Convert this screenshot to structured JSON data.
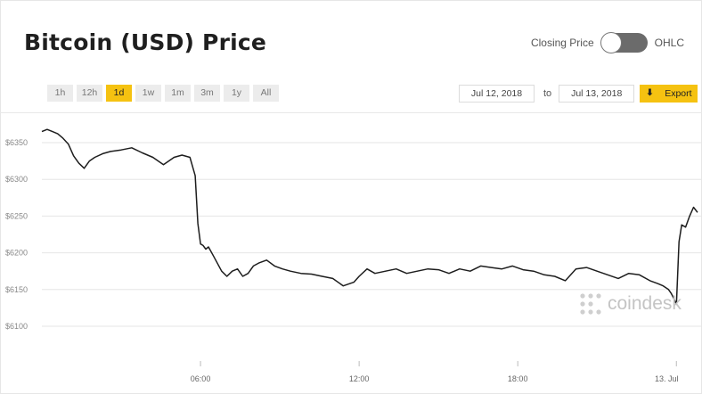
{
  "header": {
    "title": "Bitcoin (USD) Price"
  },
  "toggle": {
    "left_label": "Closing Price",
    "right_label": "OHLC"
  },
  "ranges": [
    "1h",
    "12h",
    "1d",
    "1w",
    "1m",
    "3m",
    "1y",
    "All"
  ],
  "active_range": "1d",
  "dates": {
    "from": "Jul 12, 2018",
    "to_label": "to",
    "to": "Jul 13, 2018"
  },
  "export_label": "Export",
  "watermark": "coindesk",
  "chart_data": {
    "type": "line",
    "y_ticks": [
      "$6350",
      "$6300",
      "$6250",
      "$6200",
      "$6150",
      "$6100"
    ],
    "x_ticks": [
      "06:00",
      "12:00",
      "18:00",
      "13. Jul"
    ],
    "ylim": [
      6100,
      6350
    ],
    "grid": true,
    "series": [
      {
        "x": [
          0.0,
          0.2,
          0.4,
          0.6,
          0.8,
          1.0,
          1.2,
          1.4,
          1.6,
          1.8,
          2.0,
          2.3,
          2.6,
          3.0,
          3.4,
          3.8,
          4.2,
          4.6,
          5.0,
          5.3,
          5.6,
          5.8,
          5.9,
          6.0,
          6.1,
          6.2,
          6.3,
          6.5,
          6.8,
          7.0,
          7.2,
          7.4,
          7.6,
          7.8,
          8.0,
          8.2,
          8.5,
          8.8,
          9.1,
          9.4,
          9.8,
          10.2,
          10.6,
          11.0,
          11.4,
          11.8,
          12.0,
          12.3,
          12.6,
          13.0,
          13.4,
          13.8,
          14.2,
          14.6,
          15.0,
          15.4,
          15.8,
          16.2,
          16.6,
          17.0,
          17.4,
          17.8,
          18.2,
          18.6,
          19.0,
          19.4,
          19.8,
          20.2,
          20.6,
          21.0,
          21.4,
          21.8,
          22.2,
          22.6,
          23.0,
          23.3,
          23.5,
          23.7,
          23.8,
          23.9,
          24.0,
          24.1,
          24.2,
          24.35,
          24.5,
          24.65,
          24.8
        ],
        "values": [
          6365,
          6368,
          6365,
          6362,
          6356,
          6348,
          6332,
          6322,
          6315,
          6325,
          6330,
          6335,
          6338,
          6340,
          6343,
          6336,
          6330,
          6320,
          6330,
          6333,
          6330,
          6305,
          6240,
          6212,
          6210,
          6205,
          6208,
          6195,
          6175,
          6168,
          6175,
          6178,
          6168,
          6172,
          6182,
          6186,
          6190,
          6182,
          6178,
          6175,
          6172,
          6171,
          6168,
          6165,
          6155,
          6160,
          6168,
          6178,
          6172,
          6175,
          6178,
          6172,
          6175,
          6178,
          6177,
          6172,
          6178,
          6175,
          6182,
          6180,
          6178,
          6182,
          6177,
          6175,
          6170,
          6168,
          6162,
          6178,
          6180,
          6175,
          6170,
          6165,
          6172,
          6170,
          6162,
          6158,
          6155,
          6150,
          6145,
          6138,
          6130,
          6215,
          6238,
          6235,
          6250,
          6262,
          6255
        ]
      }
    ]
  }
}
